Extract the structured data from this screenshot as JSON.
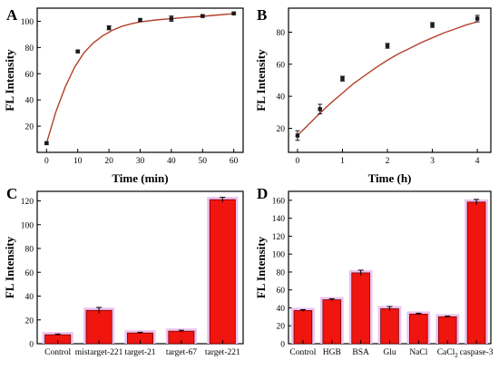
{
  "chart_data": [
    {
      "panel": "A",
      "type": "scatter",
      "xlabel": "Time (min)",
      "ylabel": "FL Intensity",
      "xlim": [
        -3,
        63
      ],
      "ylim": [
        0,
        110
      ],
      "xticks": [
        0,
        10,
        20,
        30,
        40,
        50,
        60
      ],
      "yticks": [
        20,
        40,
        60,
        80,
        100
      ],
      "points": [
        {
          "x": 0,
          "y": 7,
          "err": 0.8
        },
        {
          "x": 10,
          "y": 77,
          "err": 1
        },
        {
          "x": 20,
          "y": 95,
          "err": 1.5
        },
        {
          "x": 30,
          "y": 101,
          "err": 1
        },
        {
          "x": 40,
          "y": 102,
          "err": 2
        },
        {
          "x": 50,
          "y": 104,
          "err": 0.8
        },
        {
          "x": 60,
          "y": 106,
          "err": 0.8
        }
      ],
      "fit": [
        [
          0,
          7
        ],
        [
          3,
          31
        ],
        [
          6,
          50
        ],
        [
          9,
          65
        ],
        [
          12,
          76
        ],
        [
          15,
          83.5
        ],
        [
          18,
          89
        ],
        [
          21,
          93
        ],
        [
          24,
          96
        ],
        [
          27,
          98
        ],
        [
          30,
          99.5
        ],
        [
          35,
          101
        ],
        [
          40,
          102
        ],
        [
          45,
          103
        ],
        [
          50,
          103.8
        ],
        [
          55,
          104.8
        ],
        [
          60,
          105.8
        ]
      ],
      "colors": {
        "marker": "#1a1a1a",
        "fit": "#b5402a"
      }
    },
    {
      "panel": "B",
      "type": "scatter",
      "xlabel": "Time (h)",
      "ylabel": "FL Intensity",
      "xlim": [
        -0.2,
        4.3
      ],
      "ylim": [
        5,
        95
      ],
      "xticks": [
        0,
        1,
        2,
        3,
        4
      ],
      "yticks": [
        20,
        40,
        60,
        80
      ],
      "points": [
        {
          "x": 0,
          "y": 15.5,
          "err": 3
        },
        {
          "x": 0.5,
          "y": 32,
          "err": 3
        },
        {
          "x": 1,
          "y": 51,
          "err": 1.5
        },
        {
          "x": 2,
          "y": 71.5,
          "err": 1.5
        },
        {
          "x": 3,
          "y": 84.5,
          "err": 1.5
        },
        {
          "x": 4,
          "y": 88.5,
          "err": 2
        }
      ],
      "fit": [
        [
          0,
          15.5
        ],
        [
          0.25,
          22.5
        ],
        [
          0.5,
          29.5
        ],
        [
          0.75,
          36
        ],
        [
          1,
          42
        ],
        [
          1.25,
          48
        ],
        [
          1.5,
          53
        ],
        [
          1.75,
          58
        ],
        [
          2,
          62.5
        ],
        [
          2.25,
          66.5
        ],
        [
          2.5,
          70
        ],
        [
          2.75,
          73.5
        ],
        [
          3,
          76.5
        ],
        [
          3.25,
          79.5
        ],
        [
          3.5,
          82
        ],
        [
          3.75,
          84.5
        ],
        [
          4,
          86.5
        ]
      ],
      "colors": {
        "marker": "#1a1a1a",
        "fit": "#b5402a"
      }
    },
    {
      "panel": "C",
      "type": "bar",
      "xlabel": "",
      "ylabel": "FL Intensity",
      "ylim": [
        0,
        128
      ],
      "yticks": [
        0,
        20,
        40,
        60,
        80,
        100,
        120
      ],
      "categories": [
        "Control",
        "mistarget-221",
        "target-21",
        "target-67",
        "target-221"
      ],
      "values": [
        7.5,
        28,
        9,
        10.5,
        121
      ],
      "errors": [
        0.6,
        2.5,
        0.6,
        0.8,
        2
      ],
      "colors": {
        "bar": "#f0150f",
        "halo": "#ecc2ee",
        "edge": "#7a0000"
      }
    },
    {
      "panel": "D",
      "type": "bar",
      "xlabel": "",
      "ylabel": "FL Intensity",
      "ylim": [
        0,
        170
      ],
      "yticks": [
        0,
        20,
        40,
        60,
        80,
        100,
        120,
        140,
        160
      ],
      "categories": [
        "Control",
        "HGB",
        "BSA",
        "Glu",
        "NaCl",
        "CaCl",
        "caspase-3"
      ],
      "category_subscripts": {
        "CaCl": "2"
      },
      "values": [
        37,
        49,
        79,
        39,
        33,
        30,
        158
      ],
      "errors": [
        1,
        1.2,
        3,
        2.5,
        1,
        0.8,
        3
      ],
      "colors": {
        "bar": "#f0150f",
        "halo": "#ecc2ee",
        "edge": "#7a0000"
      }
    }
  ]
}
